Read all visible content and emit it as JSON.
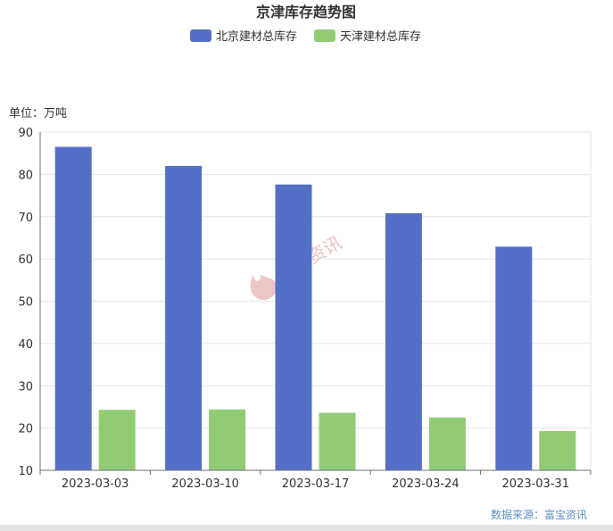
{
  "chart_data": {
    "type": "bar",
    "title": "京津库存趋势图",
    "unit_label": "单位：万吨",
    "categories": [
      "2023-03-03",
      "2023-03-10",
      "2023-03-17",
      "2023-03-24",
      "2023-03-31"
    ],
    "series": [
      {
        "name": "北京建材总库存",
        "color": "#5470c6",
        "values": [
          86.5,
          82.0,
          77.6,
          70.8,
          62.9
        ]
      },
      {
        "name": "天津建材总库存",
        "color": "#91cc75",
        "values": [
          24.3,
          24.4,
          23.6,
          22.5,
          19.3
        ]
      }
    ],
    "ylim": [
      10,
      90
    ],
    "yticks": [
      10,
      20,
      30,
      40,
      50,
      60,
      70,
      80,
      90
    ],
    "grid": true,
    "legend_position": "top-center"
  },
  "watermark": "富宝资讯",
  "footer": "数据来源：富宝资讯"
}
